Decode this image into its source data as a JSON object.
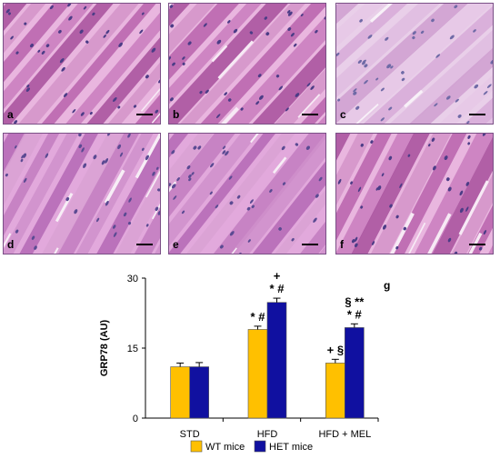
{
  "micrographs": [
    {
      "label": "a",
      "tissue": "dark"
    },
    {
      "label": "b",
      "tissue": "dark"
    },
    {
      "label": "c",
      "tissue": "pale"
    },
    {
      "label": "d",
      "tissue": "medium"
    },
    {
      "label": "e",
      "tissue": "medium"
    },
    {
      "label": "f",
      "tissue": "dark"
    }
  ],
  "chart_panel_label": "g",
  "chart_data": {
    "type": "bar",
    "title": "",
    "ylabel": "GRP78 (AU)",
    "xlabel": "",
    "ylim": [
      0,
      30
    ],
    "yticks": [
      0,
      15,
      30
    ],
    "categories": [
      "STD",
      "HFD",
      "HFD + MEL"
    ],
    "series": [
      {
        "name": "WT mice",
        "color": "#ffc000",
        "values": [
          11.0,
          19.0,
          11.8
        ],
        "errors": [
          0.8,
          0.7,
          0.8
        ]
      },
      {
        "name": "HET mice",
        "color": "#1010a0",
        "values": [
          11.0,
          24.8,
          19.4
        ],
        "errors": [
          0.9,
          0.9,
          0.8
        ]
      }
    ],
    "annotations": [
      {
        "category": 1,
        "series": 0,
        "lines": [
          "* #"
        ]
      },
      {
        "category": 1,
        "series": 1,
        "lines": [
          "+",
          "*  #"
        ]
      },
      {
        "category": 2,
        "series": 0,
        "lines": [
          "+ §"
        ]
      },
      {
        "category": 2,
        "series": 1,
        "lines": [
          "§   **",
          "*   #"
        ]
      }
    ],
    "legend_position": "bottom"
  }
}
